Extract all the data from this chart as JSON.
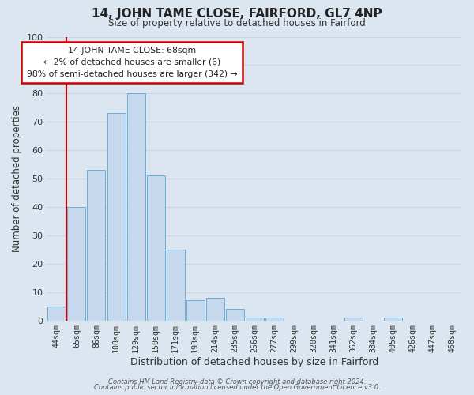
{
  "title": "14, JOHN TAME CLOSE, FAIRFORD, GL7 4NP",
  "subtitle": "Size of property relative to detached houses in Fairford",
  "xlabel": "Distribution of detached houses by size in Fairford",
  "ylabel": "Number of detached properties",
  "bar_labels": [
    "44sqm",
    "65sqm",
    "86sqm",
    "108sqm",
    "129sqm",
    "150sqm",
    "171sqm",
    "193sqm",
    "214sqm",
    "235sqm",
    "256sqm",
    "277sqm",
    "299sqm",
    "320sqm",
    "341sqm",
    "362sqm",
    "384sqm",
    "405sqm",
    "426sqm",
    "447sqm",
    "468sqm"
  ],
  "bar_values": [
    5,
    40,
    53,
    73,
    80,
    51,
    25,
    7,
    8,
    4,
    1,
    1,
    0,
    0,
    0,
    1,
    0,
    1,
    0,
    0,
    0
  ],
  "bar_color": "#c5d8ed",
  "bar_edge_color": "#6aaed6",
  "vline_color": "#cc0000",
  "annotation_text": "14 JOHN TAME CLOSE: 68sqm\n← 2% of detached houses are smaller (6)\n98% of semi-detached houses are larger (342) →",
  "annotation_box_color": "#ffffff",
  "annotation_box_edge": "#cc0000",
  "ylim": [
    0,
    100
  ],
  "grid_color": "#c8d4e8",
  "background_color": "#dce6f0",
  "footer_line1": "Contains HM Land Registry data © Crown copyright and database right 2024.",
  "footer_line2": "Contains public sector information licensed under the Open Government Licence v3.0."
}
